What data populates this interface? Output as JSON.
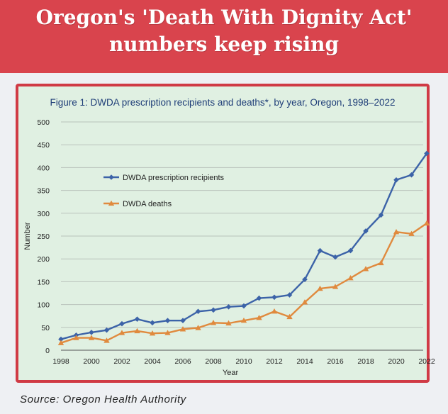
{
  "headline": {
    "line1": "Oregon's 'Death With Dignity Act'",
    "line2": "numbers keep rising"
  },
  "source": "Source: Oregon Health Authority",
  "colors": {
    "banner": "#d9444d",
    "frame": "#d03a45",
    "plot_bg": "#e0f0e2",
    "recipients": "#3c63a8",
    "deaths": "#e08a3e"
  },
  "chart_data": {
    "type": "line",
    "title": "Figure 1: DWDA prescription recipients and deaths*, by year, Oregon, 1998–2022",
    "xlabel": "Year",
    "ylabel": "Number",
    "ylim": [
      0,
      500
    ],
    "yticks": [
      0,
      50,
      100,
      150,
      200,
      250,
      300,
      350,
      400,
      450,
      500
    ],
    "xlim": [
      1998,
      2022
    ],
    "xticks": [
      1998,
      2000,
      2002,
      2004,
      2006,
      2008,
      2010,
      2012,
      2014,
      2016,
      2018,
      2020,
      2022
    ],
    "grid": "horizontal",
    "legend": "upper-left",
    "x": [
      1998,
      1999,
      2000,
      2001,
      2002,
      2003,
      2004,
      2005,
      2006,
      2007,
      2008,
      2009,
      2010,
      2011,
      2012,
      2013,
      2014,
      2015,
      2016,
      2017,
      2018,
      2019,
      2020,
      2021,
      2022
    ],
    "series": [
      {
        "name": "DWDA prescription recipients",
        "marker": "diamond",
        "color": "#3c63a8",
        "values": [
          24,
          33,
          39,
          44,
          58,
          68,
          60,
          65,
          65,
          85,
          88,
          95,
          97,
          114,
          116,
          121,
          155,
          218,
          204,
          218,
          261,
          296,
          373,
          384,
          431
        ]
      },
      {
        "name": "DWDA deaths",
        "marker": "triangle",
        "color": "#e08a3e",
        "values": [
          16,
          27,
          27,
          21,
          38,
          42,
          37,
          38,
          46,
          49,
          60,
          59,
          65,
          71,
          85,
          73,
          105,
          135,
          139,
          158,
          178,
          191,
          259,
          255,
          278
        ]
      }
    ]
  }
}
